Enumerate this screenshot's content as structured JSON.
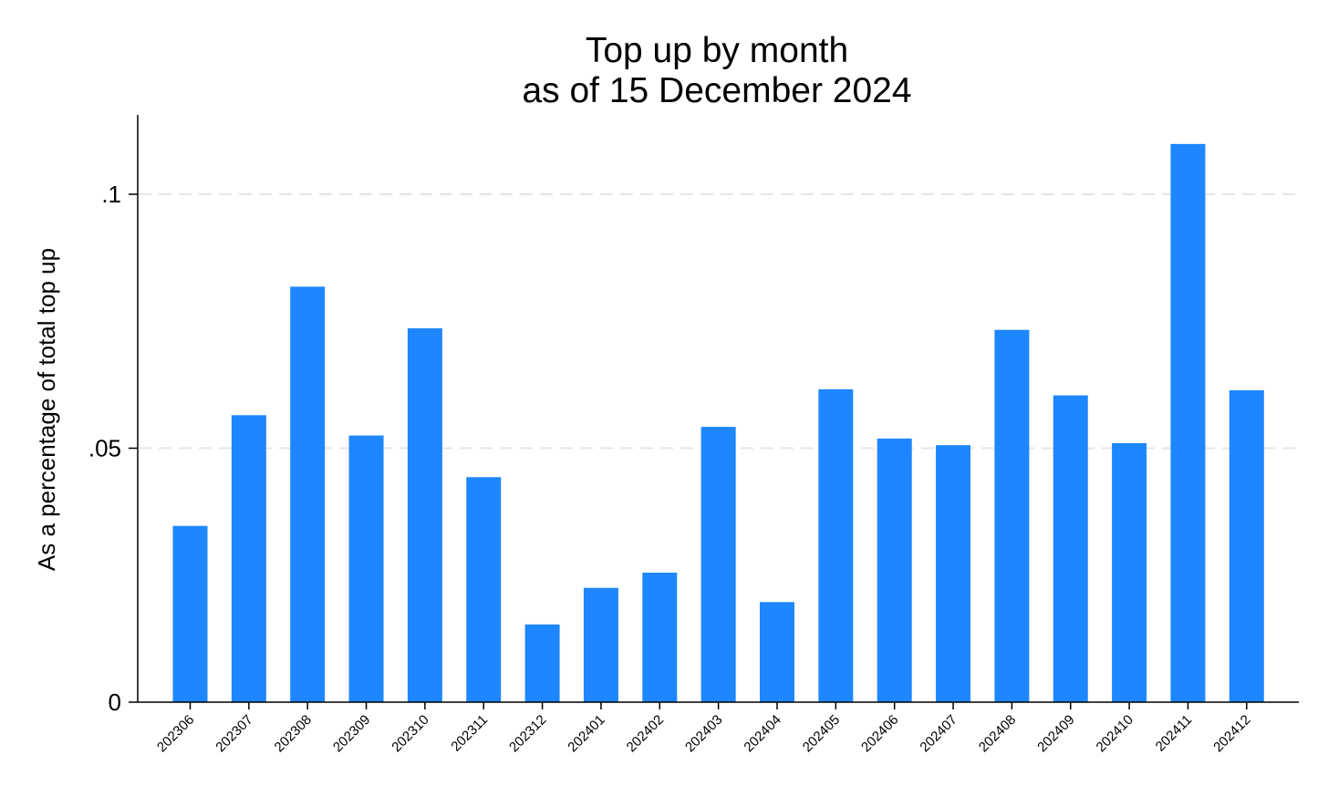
{
  "chart_data": {
    "type": "bar",
    "title": [
      "Top up by month",
      "as of 15 December 2024"
    ],
    "xlabel": "",
    "ylabel": "As a percentage of total top up",
    "ylim": [
      0,
      0.115
    ],
    "yticks": [
      {
        "value": 0,
        "label": "0"
      },
      {
        "value": 0.05,
        "label": ".05"
      },
      {
        "value": 0.1,
        "label": ".1"
      }
    ],
    "grid": true,
    "bar_color": "#1e87ff",
    "grid_color": "#e6e6e6",
    "categories": [
      "202306",
      "202307",
      "202308",
      "202309",
      "202310",
      "202311",
      "202312",
      "202401",
      "202402",
      "202403",
      "202404",
      "202405",
      "202406",
      "202407",
      "202408",
      "202409",
      "202410",
      "202411",
      "202412"
    ],
    "values": [
      0.0347,
      0.0565,
      0.0818,
      0.0525,
      0.0736,
      0.0443,
      0.0153,
      0.0225,
      0.0255,
      0.0542,
      0.0197,
      0.0616,
      0.0519,
      0.0506,
      0.0733,
      0.0604,
      0.051,
      0.1099,
      0.0614
    ]
  }
}
